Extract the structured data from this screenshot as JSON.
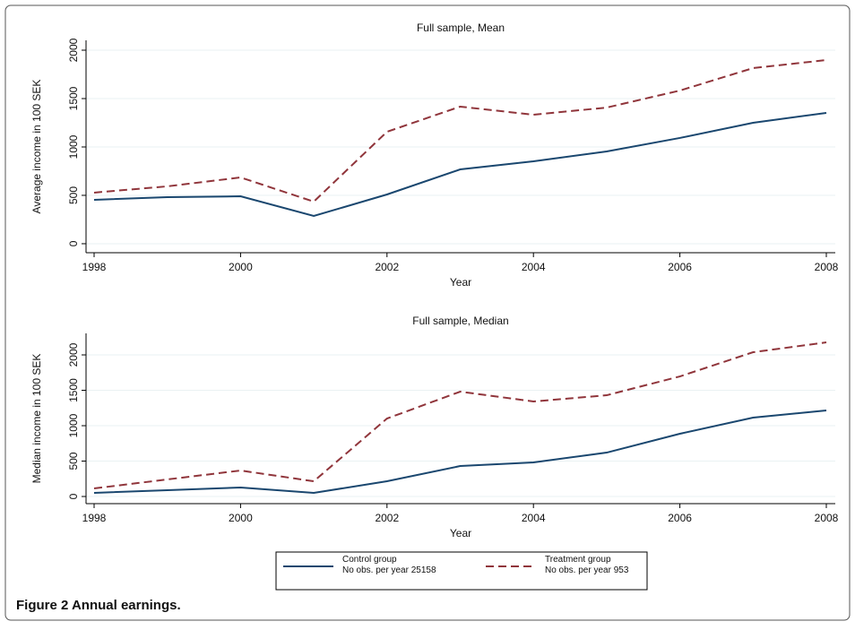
{
  "chart_data": [
    {
      "type": "line",
      "title": "Full sample, Mean",
      "xlabel": "Year",
      "ylabel": "Average income in 100 SEK",
      "x": [
        1998,
        1999,
        2000,
        2001,
        2002,
        2003,
        2004,
        2005,
        2006,
        2007,
        2008
      ],
      "series": [
        {
          "name": "Control group",
          "note": "No obs. per year 25158",
          "color": "#1a476f",
          "dash": "solid",
          "values": [
            454,
            481,
            490,
            287,
            509,
            768,
            852,
            954,
            1093,
            1250,
            1352
          ]
        },
        {
          "name": "Treatment group",
          "note": "No obs. per year 953",
          "color": "#90353b",
          "dash": "dashed",
          "values": [
            528,
            593,
            685,
            435,
            1157,
            1417,
            1333,
            1407,
            1583,
            1815,
            1898
          ]
        }
      ],
      "xlim": [
        1998,
        2008
      ],
      "xticks": [
        1998,
        2000,
        2002,
        2004,
        2006,
        2008
      ],
      "ylim": [
        -93,
        2102
      ],
      "yticks": [
        0,
        500,
        1000,
        1500,
        2000
      ],
      "grid": true
    },
    {
      "type": "line",
      "title": "Full sample, Median",
      "xlabel": "Year",
      "ylabel": "Median income in 100 SEK",
      "x": [
        1998,
        1999,
        2000,
        2001,
        2002,
        2003,
        2004,
        2005,
        2006,
        2007,
        2008
      ],
      "series": [
        {
          "color": "#1a476f",
          "dash": "solid",
          "values": [
            51,
            89,
            127,
            51,
            215,
            430,
            481,
            620,
            886,
            1114,
            1215
          ]
        },
        {
          "color": "#90353b",
          "dash": "dashed",
          "values": [
            114,
            241,
            367,
            215,
            1101,
            1481,
            1342,
            1430,
            1696,
            2038,
            2177
          ]
        }
      ],
      "xlim": [
        1998,
        2008
      ],
      "xticks": [
        1998,
        2000,
        2002,
        2004,
        2006,
        2008
      ],
      "ylim": [
        -101,
        2304
      ],
      "yticks": [
        0,
        500,
        1000,
        1500,
        2000
      ],
      "grid": true
    }
  ],
  "caption": "Figure 2 Annual earnings."
}
